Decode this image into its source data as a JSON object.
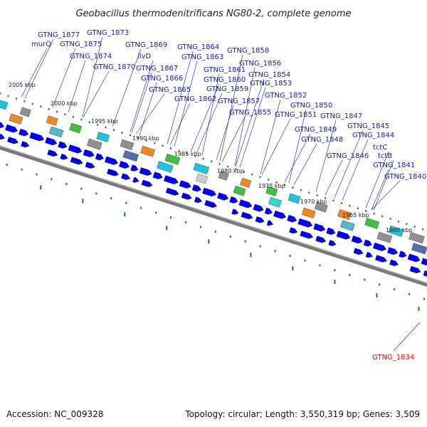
{
  "title": "Geobacillus thermodenitrificans NG80-2, complete genome",
  "footer": {
    "accession": "Accession: NC_009328",
    "topology": "Topology: circular; Length: 3,550,319 bp; Genes: 3,509"
  },
  "colors": {
    "gene_label": "#1a1aa6",
    "highlight_label": "#cc1111",
    "backbone": "#888888",
    "forward_strand": "#0000ee",
    "tick": "#2a8a2a"
  },
  "kbp_ticks": [
    "2005 kbp",
    "2000 kbp",
    "1995 kbp",
    "1990 kbp",
    "1985 kbp",
    "1980 kbp",
    "1975 kbp",
    "1970 kbp",
    "1965 kbp",
    "1960 kbp"
  ],
  "gene_labels": [
    "GTNG_1877",
    "murQ",
    "GTNG_1875",
    "GTNG_1873",
    "GTNG_1874",
    "GTNG_1869",
    "GTNG_1870",
    "ilvD",
    "GTNG_1867",
    "GTNG_1866",
    "GTNG_1865",
    "GTNG_1864",
    "GTNG_1863",
    "GTNG_1862",
    "GTNG_1861",
    "GTNG_1860",
    "GTNG_1859",
    "GTNG_1858",
    "GTNG_1856",
    "GTNG_1857",
    "GTNG_1854",
    "GTNG_1853",
    "GTNG_1855",
    "GTNG_1852",
    "GTNG_1850",
    "GTNG_1851",
    "GTNG_1849",
    "GTNG_1848",
    "GTNG_1847",
    "GTNG_1846",
    "GTNG_1845",
    "GTNG_1844",
    "tctC",
    "tctB",
    "GTNG_1841",
    "GTNG_1840"
  ],
  "highlight_label": "GTNG_1834"
}
